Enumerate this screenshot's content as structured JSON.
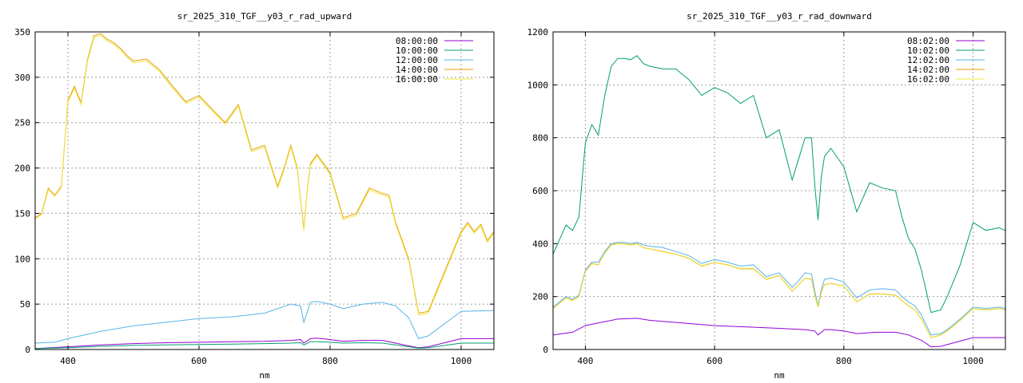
{
  "chart_data": [
    {
      "type": "line",
      "title": "sr_2025_310_TGF__y03_r_rad_upward",
      "xlabel": "nm",
      "ylabel": "",
      "xlim": [
        350,
        1050
      ],
      "ylim": [
        0,
        350
      ],
      "x_ticks": [
        400,
        600,
        800,
        1000
      ],
      "y_ticks": [
        0,
        50,
        100,
        150,
        200,
        250,
        300,
        350
      ],
      "grid": true,
      "legend_position": "top-right",
      "series": [
        {
          "name": "08:00:00",
          "color": "#9400d3",
          "x": [
            350,
            400,
            450,
            500,
            550,
            600,
            650,
            700,
            740,
            755,
            760,
            770,
            780,
            800,
            820,
            850,
            880,
            900,
            920,
            935,
            950,
            1000,
            1050
          ],
          "y": [
            1,
            3,
            5,
            6.5,
            7.5,
            8,
            8.5,
            9,
            10,
            11,
            7,
            12,
            12.5,
            11,
            9,
            10,
            10,
            7,
            4,
            2,
            3,
            12,
            12
          ]
        },
        {
          "name": "10:00:00",
          "color": "#009e73",
          "x": [
            350,
            400,
            450,
            500,
            550,
            600,
            650,
            700,
            740,
            755,
            760,
            770,
            780,
            800,
            820,
            850,
            880,
            900,
            920,
            935,
            950,
            1000,
            1050
          ],
          "y": [
            1,
            2,
            3.5,
            4.5,
            5,
            5.5,
            6,
            6.5,
            7,
            7.5,
            5,
            8.5,
            8.5,
            8,
            7,
            7.5,
            7,
            5,
            3,
            1.5,
            2,
            7,
            7
          ]
        },
        {
          "name": "12:00:00",
          "color": "#56b4e9",
          "x": [
            350,
            380,
            400,
            450,
            500,
            550,
            600,
            650,
            700,
            720,
            740,
            755,
            760,
            770,
            780,
            800,
            820,
            850,
            880,
            900,
            920,
            935,
            950,
            1000,
            1050
          ],
          "y": [
            7,
            8,
            12,
            20,
            26,
            30,
            34,
            36,
            40,
            45,
            50,
            48,
            30,
            52,
            53,
            50,
            45,
            50,
            52,
            48,
            35,
            12,
            15,
            42,
            43
          ]
        },
        {
          "name": "14:00:00",
          "color": "#e69f00",
          "x": [
            350,
            360,
            370,
            380,
            390,
            400,
            410,
            420,
            430,
            440,
            450,
            460,
            470,
            480,
            490,
            500,
            520,
            540,
            560,
            580,
            600,
            620,
            640,
            660,
            680,
            700,
            720,
            730,
            740,
            750,
            755,
            760,
            765,
            770,
            780,
            800,
            820,
            840,
            860,
            880,
            890,
            900,
            910,
            920,
            935,
            950,
            960,
            980,
            1000,
            1010,
            1020,
            1030,
            1040,
            1050
          ],
          "y": [
            145,
            150,
            178,
            170,
            180,
            275,
            290,
            272,
            320,
            346,
            348,
            342,
            338,
            332,
            324,
            318,
            320,
            308,
            290,
            273,
            280,
            265,
            250,
            270,
            220,
            225,
            180,
            200,
            225,
            200,
            165,
            133,
            175,
            205,
            215,
            195,
            145,
            150,
            178,
            172,
            170,
            140,
            120,
            100,
            40,
            42,
            60,
            95,
            130,
            140,
            130,
            138,
            120,
            130
          ]
        },
        {
          "name": "16:00:00",
          "color": "#f0e442",
          "x": [
            350,
            360,
            370,
            380,
            390,
            400,
            410,
            420,
            430,
            440,
            450,
            460,
            470,
            480,
            490,
            500,
            520,
            540,
            560,
            580,
            600,
            620,
            640,
            660,
            680,
            700,
            720,
            730,
            740,
            750,
            755,
            760,
            765,
            770,
            780,
            800,
            820,
            840,
            860,
            880,
            890,
            900,
            910,
            920,
            935,
            950,
            960,
            980,
            1000,
            1010,
            1020,
            1030,
            1040,
            1050
          ],
          "y": [
            144,
            149,
            176,
            169,
            179,
            273,
            288,
            270,
            318,
            344,
            346,
            340,
            336,
            330,
            322,
            316,
            318,
            306,
            288,
            271,
            278,
            263,
            248,
            268,
            218,
            223,
            178,
            198,
            223,
            198,
            163,
            131,
            173,
            203,
            213,
            193,
            143,
            148,
            176,
            170,
            168,
            138,
            118,
            98,
            38,
            40,
            58,
            93,
            128,
            138,
            128,
            136,
            118,
            128
          ]
        }
      ]
    },
    {
      "type": "line",
      "title": "sr_2025_310_TGF__y03_r_rad_downward",
      "xlabel": "nm",
      "ylabel": "",
      "xlim": [
        350,
        1050
      ],
      "ylim": [
        0,
        1200
      ],
      "x_ticks": [
        400,
        600,
        800,
        1000
      ],
      "y_ticks": [
        0,
        200,
        400,
        600,
        800,
        1000,
        1200
      ],
      "grid": true,
      "legend_position": "top-right",
      "series": [
        {
          "name": "08:02:00",
          "color": "#9400d3",
          "x": [
            350,
            380,
            400,
            420,
            450,
            480,
            500,
            550,
            600,
            650,
            700,
            740,
            755,
            760,
            770,
            780,
            800,
            820,
            850,
            880,
            900,
            920,
            935,
            950,
            1000,
            1050
          ],
          "y": [
            55,
            65,
            90,
            100,
            115,
            118,
            110,
            100,
            90,
            85,
            80,
            75,
            70,
            55,
            75,
            75,
            70,
            60,
            65,
            65,
            55,
            35,
            10,
            12,
            45,
            45
          ]
        },
        {
          "name": "10:02:00",
          "color": "#009e73",
          "x": [
            350,
            370,
            380,
            390,
            400,
            410,
            420,
            430,
            440,
            450,
            460,
            470,
            480,
            490,
            500,
            520,
            540,
            560,
            580,
            600,
            620,
            640,
            660,
            680,
            700,
            720,
            730,
            740,
            750,
            755,
            760,
            765,
            770,
            780,
            800,
            820,
            840,
            860,
            880,
            890,
            900,
            910,
            920,
            935,
            950,
            960,
            980,
            1000,
            1020,
            1040,
            1050
          ],
          "y": [
            360,
            470,
            450,
            500,
            780,
            850,
            810,
            960,
            1070,
            1100,
            1100,
            1095,
            1110,
            1080,
            1070,
            1060,
            1060,
            1020,
            960,
            990,
            970,
            930,
            960,
            800,
            830,
            640,
            720,
            800,
            800,
            620,
            490,
            650,
            730,
            760,
            690,
            520,
            630,
            610,
            600,
            500,
            420,
            380,
            300,
            140,
            150,
            200,
            320,
            480,
            450,
            460,
            450
          ]
        },
        {
          "name": "12:02:00",
          "color": "#56b4e9",
          "x": [
            350,
            370,
            380,
            390,
            400,
            410,
            420,
            430,
            440,
            450,
            460,
            470,
            480,
            490,
            500,
            520,
            540,
            560,
            580,
            600,
            620,
            640,
            660,
            680,
            700,
            720,
            730,
            740,
            750,
            755,
            760,
            765,
            770,
            780,
            800,
            820,
            840,
            860,
            880,
            890,
            900,
            910,
            920,
            935,
            950,
            960,
            980,
            1000,
            1020,
            1040,
            1050
          ],
          "y": [
            160,
            200,
            190,
            205,
            300,
            330,
            330,
            370,
            400,
            405,
            405,
            400,
            405,
            395,
            390,
            385,
            370,
            355,
            325,
            340,
            330,
            315,
            320,
            275,
            290,
            235,
            260,
            290,
            285,
            220,
            165,
            225,
            265,
            270,
            255,
            195,
            225,
            230,
            225,
            200,
            180,
            165,
            130,
            55,
            60,
            75,
            115,
            160,
            155,
            160,
            155
          ]
        },
        {
          "name": "14:02:00",
          "color": "#e69f00",
          "x": [
            350,
            370,
            380,
            390,
            400,
            410,
            420,
            430,
            440,
            450,
            460,
            470,
            480,
            490,
            500,
            520,
            540,
            560,
            580,
            600,
            620,
            640,
            660,
            680,
            700,
            720,
            730,
            740,
            750,
            755,
            760,
            765,
            770,
            780,
            800,
            820,
            840,
            860,
            880,
            890,
            900,
            910,
            920,
            935,
            950,
            960,
            980,
            1000,
            1020,
            1040,
            1050
          ],
          "y": [
            155,
            195,
            185,
            200,
            295,
            325,
            320,
            365,
            395,
            400,
            400,
            395,
            400,
            385,
            380,
            370,
            360,
            345,
            315,
            330,
            320,
            305,
            305,
            265,
            280,
            220,
            245,
            270,
            265,
            205,
            160,
            215,
            245,
            250,
            240,
            180,
            210,
            210,
            205,
            185,
            165,
            150,
            115,
            45,
            55,
            70,
            110,
            155,
            150,
            155,
            150
          ]
        },
        {
          "name": "16:02:00",
          "color": "#f0e442",
          "x": [
            350,
            370,
            380,
            390,
            400,
            410,
            420,
            430,
            440,
            450,
            460,
            470,
            480,
            490,
            500,
            520,
            540,
            560,
            580,
            600,
            620,
            640,
            660,
            680,
            700,
            720,
            730,
            740,
            750,
            755,
            760,
            765,
            770,
            780,
            800,
            820,
            840,
            860,
            880,
            890,
            900,
            910,
            920,
            935,
            950,
            960,
            980,
            1000,
            1020,
            1040,
            1050
          ],
          "y": [
            154,
            194,
            184,
            199,
            294,
            324,
            319,
            364,
            394,
            399,
            399,
            394,
            399,
            384,
            379,
            369,
            359,
            344,
            314,
            329,
            319,
            304,
            304,
            264,
            279,
            219,
            244,
            269,
            264,
            204,
            159,
            214,
            244,
            249,
            239,
            179,
            209,
            209,
            204,
            184,
            164,
            149,
            114,
            44,
            54,
            69,
            109,
            154,
            149,
            154,
            149
          ]
        }
      ]
    }
  ]
}
